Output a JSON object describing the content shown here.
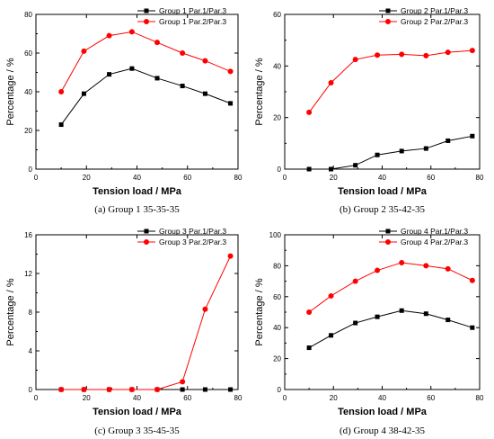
{
  "chart_data": [
    {
      "type": "line",
      "caption": "(a) Group 1  35-35-35",
      "xlabel": "Tension load / MPa",
      "ylabel": "Percentage / %",
      "xlim": [
        0,
        80
      ],
      "ylim": [
        0,
        80
      ],
      "xticks": [
        "0",
        "20",
        "40",
        "60",
        "80"
      ],
      "yticks": [
        "0",
        "20",
        "40",
        "60",
        "80"
      ],
      "legend_position": "top-right",
      "x": [
        10,
        19,
        29,
        38,
        48,
        58,
        67,
        77
      ],
      "series": [
        {
          "name": "Group 1 Par.1/Par.3",
          "color": "#000000",
          "marker": "square",
          "values": [
            23,
            39,
            49,
            52,
            47,
            43,
            39,
            34
          ]
        },
        {
          "name": "Group 1 Par.2/Par.3",
          "color": "#ff0000",
          "marker": "circle",
          "values": [
            40,
            61,
            69,
            71,
            65.5,
            60,
            56,
            50.5
          ]
        }
      ]
    },
    {
      "type": "line",
      "caption": "(b) Group 2  35-42-35",
      "xlabel": "Tension load / MPa",
      "ylabel": "Percentage / %",
      "xlim": [
        0,
        80
      ],
      "ylim": [
        0,
        60
      ],
      "xticks": [
        "0",
        "20",
        "40",
        "60",
        "80"
      ],
      "yticks": [
        "0",
        "20",
        "40",
        "60"
      ],
      "legend_position": "top-right",
      "x": [
        10,
        19,
        29,
        38,
        48,
        58,
        67,
        77
      ],
      "series": [
        {
          "name": "Group 2 Par.1/Par.3",
          "color": "#000000",
          "marker": "square",
          "values": [
            0,
            0,
            1.5,
            5.5,
            7,
            8,
            11,
            12.8
          ]
        },
        {
          "name": "Group 2 Par.2/Par.3",
          "color": "#ff0000",
          "marker": "circle",
          "values": [
            22,
            33.5,
            42.5,
            44.2,
            44.5,
            44,
            45.3,
            46
          ]
        }
      ]
    },
    {
      "type": "line",
      "caption": "(c) Group 3  35-45-35",
      "xlabel": "Tension load / MPa",
      "ylabel": "Percentage / %",
      "xlim": [
        0,
        80
      ],
      "ylim": [
        0,
        16
      ],
      "xticks": [
        "0",
        "20",
        "40",
        "60",
        "80"
      ],
      "yticks": [
        "0",
        "4",
        "8",
        "12",
        "16"
      ],
      "legend_position": "top-right",
      "x": [
        10,
        19,
        29,
        38,
        48,
        58,
        67,
        77
      ],
      "series": [
        {
          "name": "Group 3 Par.1/Par.3",
          "color": "#000000",
          "marker": "square",
          "values": [
            0,
            0,
            0,
            0,
            0,
            0,
            0,
            0
          ]
        },
        {
          "name": "Group 3 Par.2/Par.3",
          "color": "#ff0000",
          "marker": "circle",
          "values": [
            0,
            0,
            0,
            0,
            0,
            0.8,
            8.3,
            13.8
          ]
        }
      ]
    },
    {
      "type": "line",
      "caption": "(d) Group 4  38-42-35",
      "xlabel": "Tension load / MPa",
      "ylabel": "Percentage / %",
      "xlim": [
        0,
        80
      ],
      "ylim": [
        0,
        100
      ],
      "xticks": [
        "0",
        "20",
        "40",
        "60",
        "80"
      ],
      "yticks": [
        "0",
        "20",
        "40",
        "60",
        "80",
        "100"
      ],
      "legend_position": "top-right",
      "x": [
        10,
        19,
        29,
        38,
        48,
        58,
        67,
        77
      ],
      "series": [
        {
          "name": "Group 4 Par.1/Par.3",
          "color": "#000000",
          "marker": "square",
          "values": [
            27,
            35,
            43,
            47,
            51,
            49,
            45,
            40
          ]
        },
        {
          "name": "Group 4 Par.2/Par.3",
          "color": "#ff0000",
          "marker": "circle",
          "values": [
            50,
            60.5,
            70,
            77,
            82,
            80,
            78,
            70.5
          ]
        }
      ]
    }
  ]
}
